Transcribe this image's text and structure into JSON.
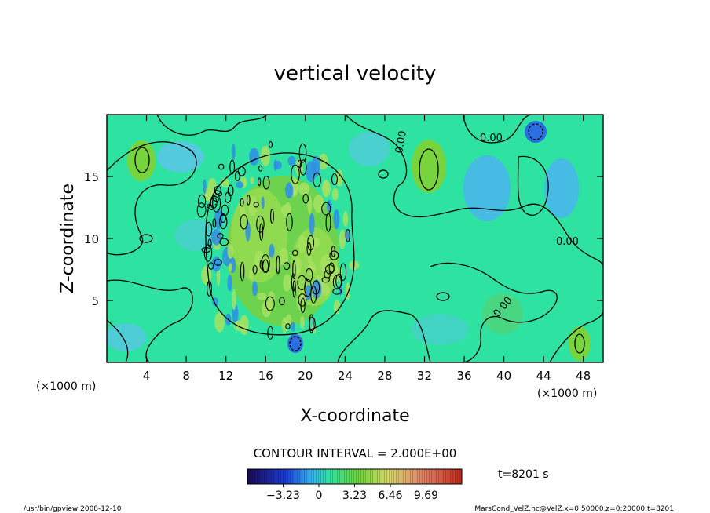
{
  "chart_data": {
    "type": "heatmap",
    "title": "vertical velocity",
    "xlabel": "X-coordinate",
    "ylabel": "Z-coordinate",
    "x_unit_left": "(×1000 m)",
    "x_unit_right": "(×1000 m)",
    "xlim": [
      0,
      50
    ],
    "ylim": [
      0,
      20
    ],
    "x_ticks": [
      4,
      8,
      12,
      16,
      20,
      24,
      28,
      32,
      36,
      40,
      44,
      48
    ],
    "y_ticks": [
      5,
      10,
      15
    ],
    "contour_labels": [
      "0.00",
      "0.00",
      "0.00",
      "0.00",
      "0.00"
    ],
    "contour_interval_text": "CONTOUR INTERVAL = 2.000E+00",
    "time_text": "t=8201 s",
    "colorbar": {
      "min": -6.46,
      "max": 12.92,
      "tick_values": [
        -3.23,
        0,
        3.23,
        6.46,
        9.69
      ],
      "tick_labels": [
        "−3.23",
        "0",
        "3.23",
        "6.46",
        "9.69"
      ]
    },
    "footer_left": "/usr/bin/gpview  2008-12-10",
    "footer_right": "MarsCond_VelZ.nc@VelZ,x=0:50000,z=0:20000,t=8201"
  },
  "colors": {
    "background_field": "#2ee2a2",
    "positive_field": "#7ad43a",
    "negative_field": "#3ba8f0",
    "strong_negative": "#1e50d8"
  }
}
